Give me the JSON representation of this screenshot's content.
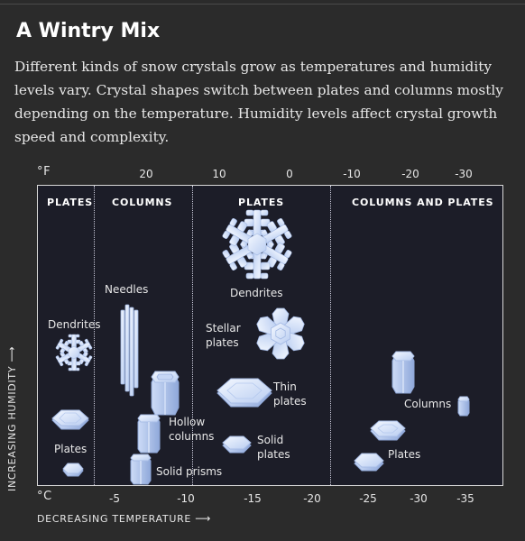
{
  "header": {
    "title": "A Wintry Mix",
    "description": "Different kinds of snow crystals grow as temperatures and humidity levels vary. Crystal shapes switch between plates and columns mostly depending on the temperature. Humidity levels affect crystal growth speed and complexity."
  },
  "axes": {
    "fahrenheit_unit": "°F",
    "celsius_unit": "°C",
    "fahrenheit_ticks": [
      "20",
      "10",
      "0",
      "-10",
      "-20",
      "-30"
    ],
    "celsius_ticks": [
      "-5",
      "-10",
      "-15",
      "-20",
      "-25",
      "-30",
      "-35"
    ],
    "x_label": "DECREASING TEMPERATURE",
    "y_label": "INCREASING HUMIDITY",
    "arrow": "⟶"
  },
  "regions": [
    "PLATES",
    "COLUMNS",
    "PLATES",
    "COLUMNS AND PLATES"
  ],
  "crystals": {
    "dendrites_left": "Dendrites",
    "plates_left": "Plates",
    "needles": "Needles",
    "hollow_columns": "Hollow\ncolumns",
    "solid_prisms": "Solid prisms",
    "dendrites_center": "Dendrites",
    "stellar_plates": "Stellar\nplates",
    "thin_plates": "Thin\nplates",
    "solid_plates": "Solid\nplates",
    "columns_right": "Columns",
    "plates_right": "Plates"
  },
  "colors": {
    "background": "#2b2b2b",
    "panel": "#1c1d28",
    "crystal_fill": "#d6e4fb",
    "crystal_edge": "#9fb6e2"
  }
}
